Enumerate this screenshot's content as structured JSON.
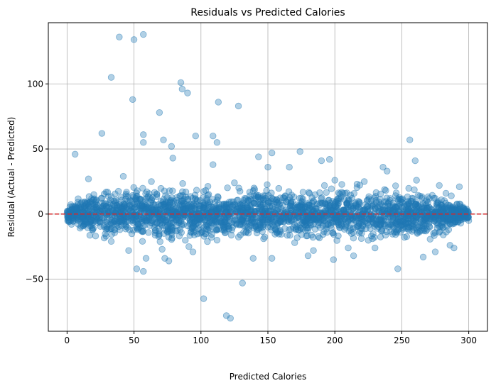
{
  "chart_data": {
    "type": "scatter",
    "title": "Residuals vs Predicted Calories",
    "xlabel": "Predicted Calories",
    "ylabel": "Residual (Actual - Predicted)",
    "xlim": [
      -14,
      314
    ],
    "ylim": [
      -90,
      147
    ],
    "xticks": [
      0,
      50,
      100,
      150,
      200,
      250,
      300
    ],
    "xtick_labels": [
      "0",
      "50",
      "100",
      "150",
      "200",
      "250",
      "300"
    ],
    "yticks": [
      -50,
      0,
      50,
      100
    ],
    "ytick_labels": [
      "−50",
      "0",
      "50",
      "100"
    ],
    "grid": true,
    "point_color": "#1f77b4",
    "point_alpha": 0.35,
    "reference_line": {
      "y": 0,
      "color": "#d62728",
      "style": "dashed"
    },
    "dense_band": {
      "description": "thousands of overlapping points",
      "x_range": [
        0,
        300
      ],
      "spread_y": 8
    },
    "outliers": [
      {
        "x": 39,
        "y": 136
      },
      {
        "x": 57,
        "y": 138
      },
      {
        "x": 50,
        "y": 134
      },
      {
        "x": 33,
        "y": 105
      },
      {
        "x": 85,
        "y": 101
      },
      {
        "x": 86,
        "y": 96
      },
      {
        "x": 90,
        "y": 93
      },
      {
        "x": 49,
        "y": 88
      },
      {
        "x": 113,
        "y": 86
      },
      {
        "x": 128,
        "y": 83
      },
      {
        "x": 69,
        "y": 78
      },
      {
        "x": 26,
        "y": 62
      },
      {
        "x": 57,
        "y": 61
      },
      {
        "x": 57,
        "y": 55
      },
      {
        "x": 72,
        "y": 57
      },
      {
        "x": 96,
        "y": 60
      },
      {
        "x": 109,
        "y": 60
      },
      {
        "x": 112,
        "y": 55
      },
      {
        "x": 78,
        "y": 52
      },
      {
        "x": 79,
        "y": 43
      },
      {
        "x": 6,
        "y": 46
      },
      {
        "x": 153,
        "y": 47
      },
      {
        "x": 174,
        "y": 48
      },
      {
        "x": 256,
        "y": 57
      },
      {
        "x": 260,
        "y": 41
      },
      {
        "x": 109,
        "y": 38
      },
      {
        "x": 190,
        "y": 41
      },
      {
        "x": 196,
        "y": 42
      },
      {
        "x": 236,
        "y": 36
      },
      {
        "x": 239,
        "y": 33
      },
      {
        "x": 143,
        "y": 44
      },
      {
        "x": 150,
        "y": 36
      },
      {
        "x": 166,
        "y": 36
      },
      {
        "x": 16,
        "y": 27
      },
      {
        "x": 42,
        "y": 29
      },
      {
        "x": 261,
        "y": 26
      },
      {
        "x": 278,
        "y": 22
      },
      {
        "x": 293,
        "y": 21
      },
      {
        "x": 283,
        "y": 16
      },
      {
        "x": 287,
        "y": 14
      },
      {
        "x": 298,
        "y": -3
      },
      {
        "x": 300,
        "y": -5
      },
      {
        "x": 294,
        "y": -7
      },
      {
        "x": 285,
        "y": -12
      },
      {
        "x": 281,
        "y": -16
      },
      {
        "x": 286,
        "y": -24
      },
      {
        "x": 289,
        "y": -26
      },
      {
        "x": 275,
        "y": -29
      },
      {
        "x": 266,
        "y": -33
      },
      {
        "x": 247,
        "y": -42
      },
      {
        "x": 52,
        "y": -42
      },
      {
        "x": 57,
        "y": -44
      },
      {
        "x": 59,
        "y": -34
      },
      {
        "x": 46,
        "y": -28
      },
      {
        "x": 71,
        "y": -27
      },
      {
        "x": 73,
        "y": -34
      },
      {
        "x": 76,
        "y": -36
      },
      {
        "x": 94,
        "y": -29
      },
      {
        "x": 91,
        "y": -25
      },
      {
        "x": 102,
        "y": -65
      },
      {
        "x": 131,
        "y": -53
      },
      {
        "x": 119,
        "y": -78
      },
      {
        "x": 122,
        "y": -80
      },
      {
        "x": 153,
        "y": -34
      },
      {
        "x": 139,
        "y": -34
      },
      {
        "x": 180,
        "y": -32
      },
      {
        "x": 184,
        "y": -28
      },
      {
        "x": 199,
        "y": -35
      },
      {
        "x": 210,
        "y": -26
      },
      {
        "x": 214,
        "y": -32
      },
      {
        "x": 230,
        "y": -26
      },
      {
        "x": 8,
        "y": 9
      },
      {
        "x": 20,
        "y": 15
      },
      {
        "x": 63,
        "y": 25
      },
      {
        "x": 125,
        "y": 24
      },
      {
        "x": 200,
        "y": 26
      },
      {
        "x": 222,
        "y": 25
      },
      {
        "x": 170,
        "y": -22
      },
      {
        "x": 112,
        "y": -20
      },
      {
        "x": 33,
        "y": -21
      }
    ]
  }
}
